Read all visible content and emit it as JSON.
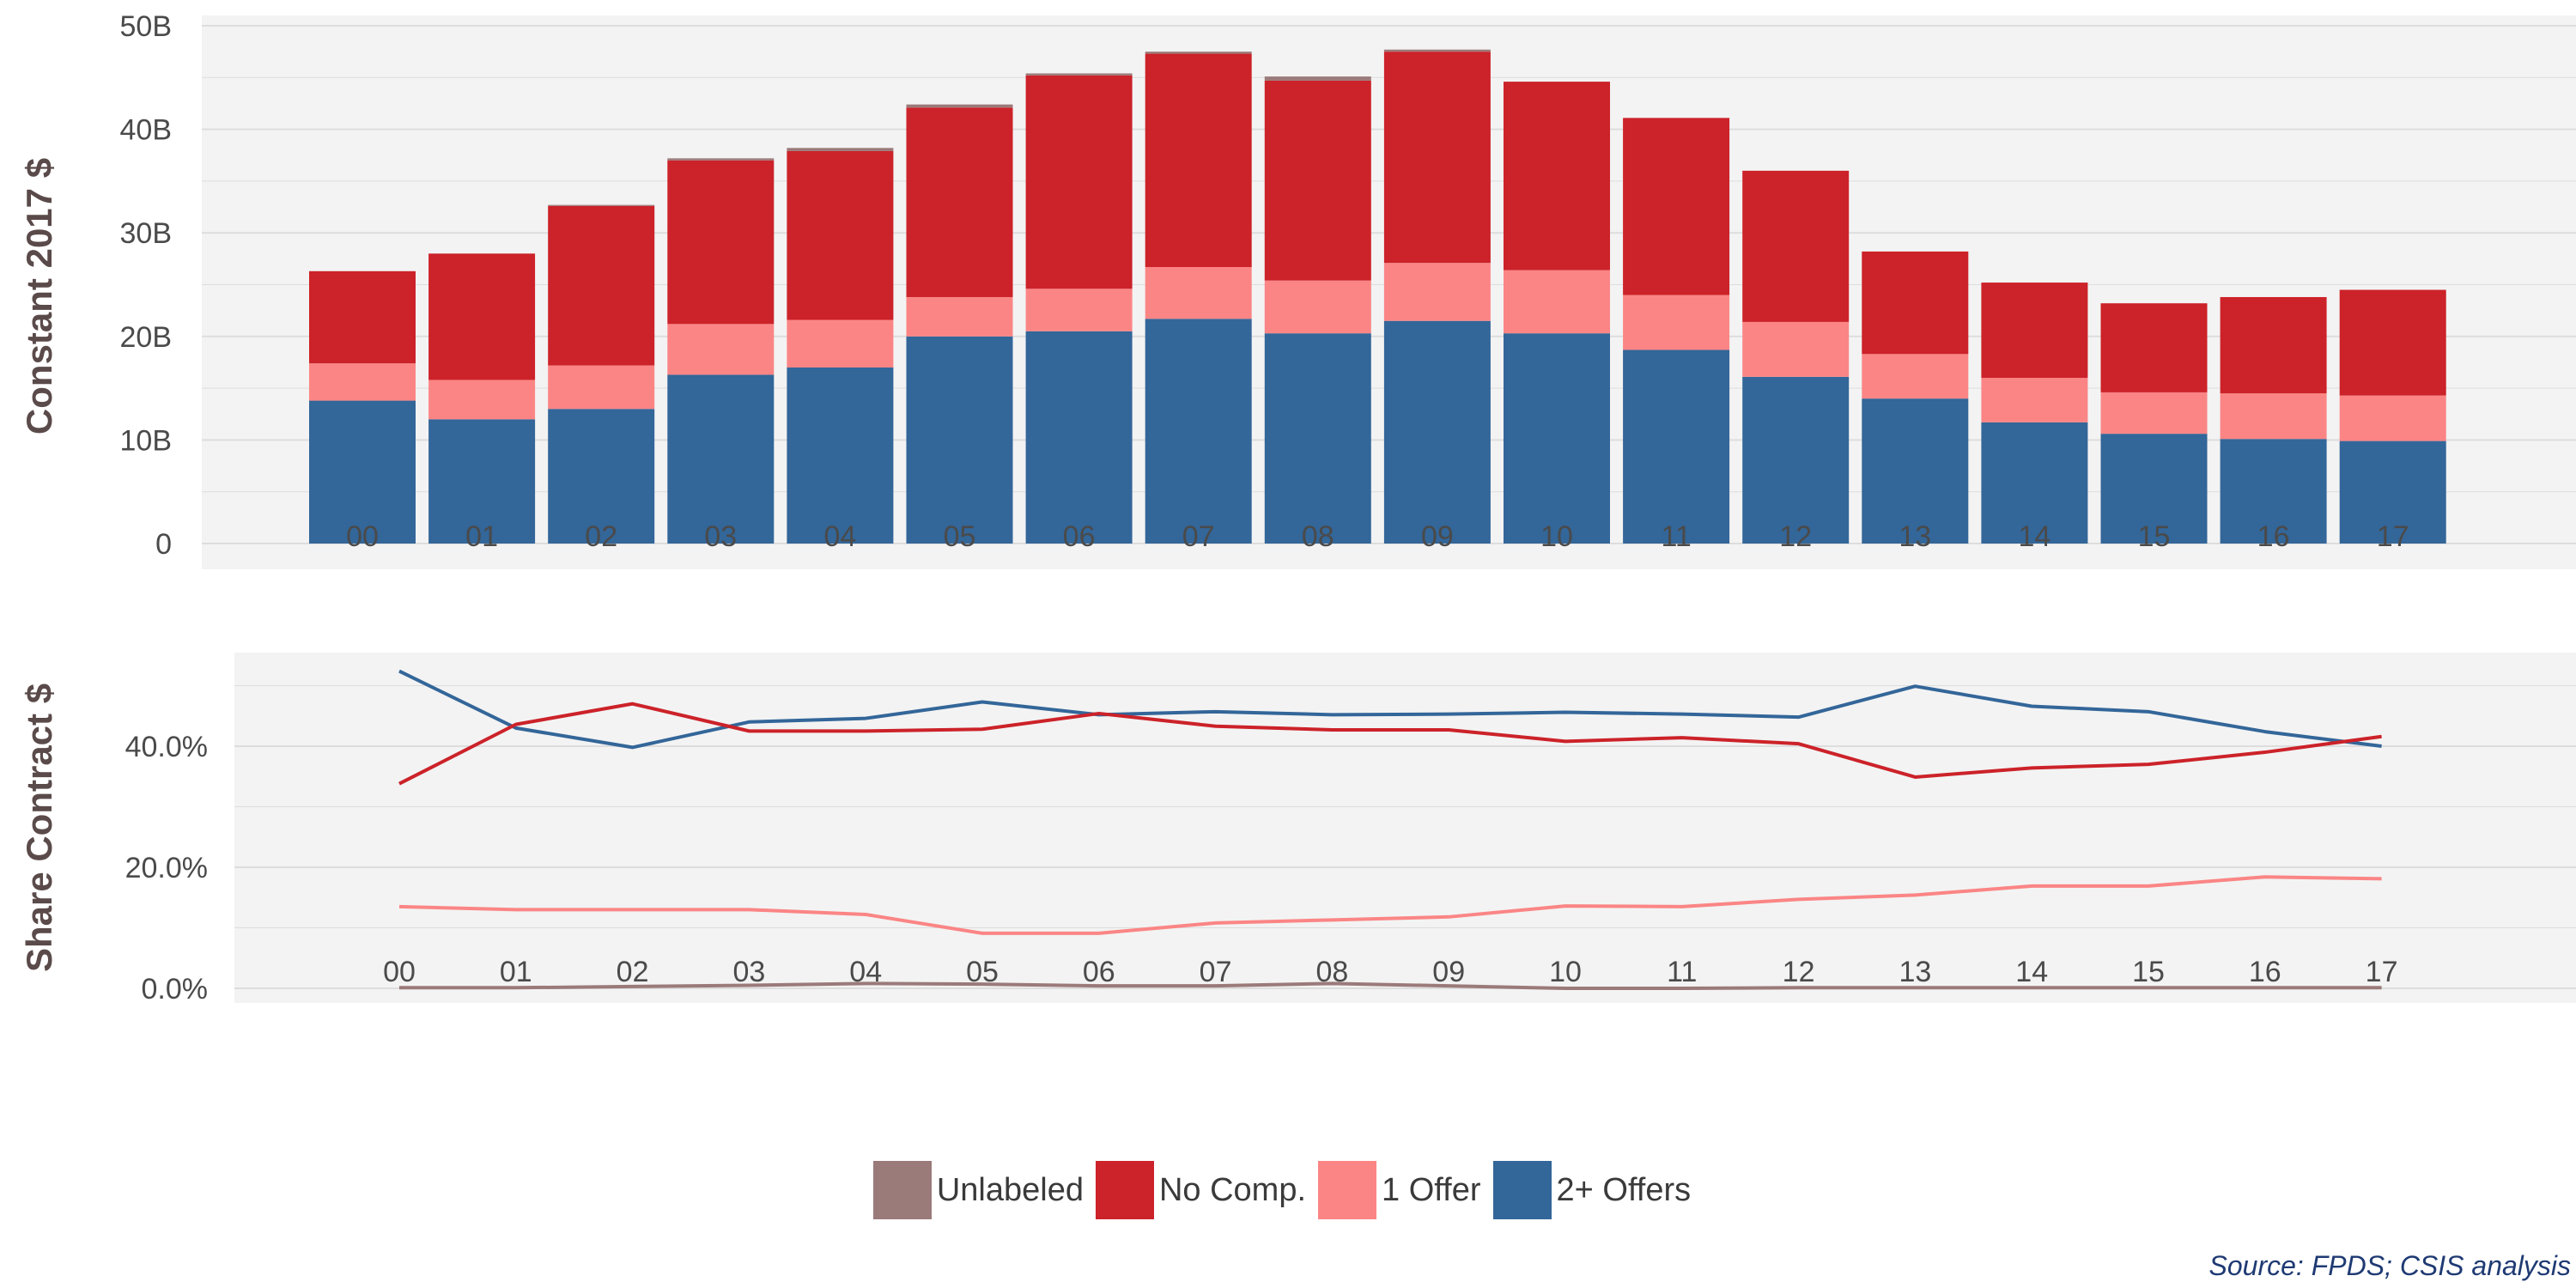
{
  "chart_data": [
    {
      "type": "bar",
      "stacked": true,
      "ylabel": "Constant 2017 $",
      "ylim": [
        0,
        50
      ],
      "yticks": [
        "0",
        "10B",
        "20B",
        "30B",
        "40B",
        "50B"
      ],
      "categories": [
        "00",
        "01",
        "02",
        "03",
        "04",
        "05",
        "06",
        "07",
        "08",
        "09",
        "10",
        "11",
        "12",
        "13",
        "14",
        "15",
        "16",
        "17"
      ],
      "series": [
        {
          "name": "2+ Offers",
          "color": "#336699",
          "values": [
            13.8,
            12.0,
            13.0,
            16.3,
            17.0,
            20.0,
            20.5,
            21.7,
            20.3,
            21.5,
            20.3,
            18.7,
            16.1,
            14.0,
            11.7,
            10.6,
            10.1,
            9.9
          ]
        },
        {
          "name": "1 Offer",
          "color": "#fb8585",
          "values": [
            3.6,
            3.8,
            4.2,
            4.9,
            4.6,
            3.8,
            4.1,
            5.0,
            5.1,
            5.6,
            6.1,
            5.3,
            5.3,
            4.3,
            4.3,
            4.0,
            4.4,
            4.4
          ]
        },
        {
          "name": "No Comp.",
          "color": "#cc2229",
          "values": [
            8.9,
            12.2,
            15.4,
            15.8,
            16.3,
            18.3,
            20.6,
            20.6,
            19.3,
            20.4,
            18.2,
            17.1,
            14.6,
            9.9,
            9.2,
            8.6,
            9.3,
            10.2
          ]
        },
        {
          "name": "Unlabeled",
          "color": "#9b7a7a",
          "values": [
            0.0,
            0.0,
            0.1,
            0.2,
            0.3,
            0.3,
            0.2,
            0.2,
            0.4,
            0.2,
            0.0,
            0.0,
            0.0,
            0.0,
            0.0,
            0.0,
            0.0,
            0.0
          ]
        }
      ],
      "grid": true
    },
    {
      "type": "line",
      "ylabel": "Share Contract $",
      "ylim": [
        0,
        53
      ],
      "yticks": [
        "0.0%",
        "20.0%",
        "40.0%"
      ],
      "x": [
        "00",
        "01",
        "02",
        "03",
        "04",
        "05",
        "06",
        "07",
        "08",
        "09",
        "10",
        "11",
        "12",
        "13",
        "14",
        "15",
        "16",
        "17"
      ],
      "series": [
        {
          "name": "2+ Offers",
          "color": "#336699",
          "values": [
            52.4,
            43.0,
            39.8,
            44.0,
            44.6,
            47.3,
            45.2,
            45.7,
            45.2,
            45.3,
            45.6,
            45.3,
            44.8,
            49.9,
            46.6,
            45.7,
            42.4,
            40.0
          ]
        },
        {
          "name": "No Comp.",
          "color": "#cc2229",
          "values": [
            33.8,
            43.6,
            47.0,
            42.5,
            42.5,
            42.8,
            45.4,
            43.3,
            42.7,
            42.7,
            40.8,
            41.4,
            40.4,
            34.9,
            36.4,
            37.0,
            39.0,
            41.6
          ]
        },
        {
          "name": "1 Offer",
          "color": "#fb8585",
          "values": [
            13.5,
            13.0,
            13.0,
            13.0,
            12.2,
            9.1,
            9.1,
            10.8,
            11.3,
            11.8,
            13.6,
            13.5,
            14.7,
            15.4,
            16.9,
            16.9,
            18.4,
            18.1
          ]
        },
        {
          "name": "Unlabeled",
          "color": "#9b7a7a",
          "values": [
            0.1,
            0.1,
            0.3,
            0.5,
            0.8,
            0.7,
            0.4,
            0.4,
            0.8,
            0.4,
            0.0,
            0.0,
            0.1,
            0.1,
            0.1,
            0.1,
            0.1,
            0.1
          ]
        }
      ],
      "grid": true
    }
  ],
  "legend": [
    {
      "label": "Unlabeled",
      "color": "#9b7a7a"
    },
    {
      "label": "No Comp.",
      "color": "#cc2229"
    },
    {
      "label": "1 Offer",
      "color": "#fb8585"
    },
    {
      "label": "2+ Offers",
      "color": "#336699"
    }
  ],
  "source": "Source: FPDS; CSIS analysis"
}
